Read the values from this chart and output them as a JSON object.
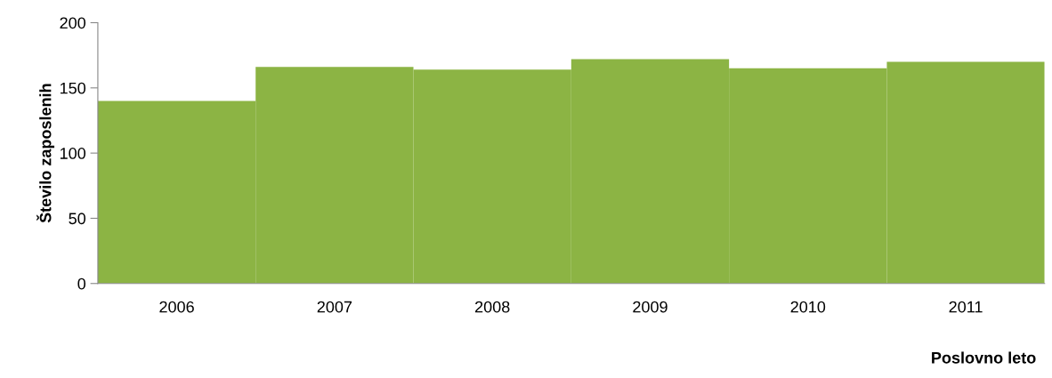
{
  "chart_data": {
    "type": "bar",
    "xlabel": "Poslovno leto",
    "ylabel": "Število zaposlenih",
    "categories": [
      "2006",
      "2007",
      "2008",
      "2009",
      "2010",
      "2011"
    ],
    "values": [
      140,
      166,
      164,
      172,
      165,
      170
    ],
    "color": "#8cb444",
    "ylim": [
      0,
      200
    ],
    "yticks": [
      0,
      50,
      100,
      150,
      200
    ],
    "grid": false,
    "legend": false
  }
}
